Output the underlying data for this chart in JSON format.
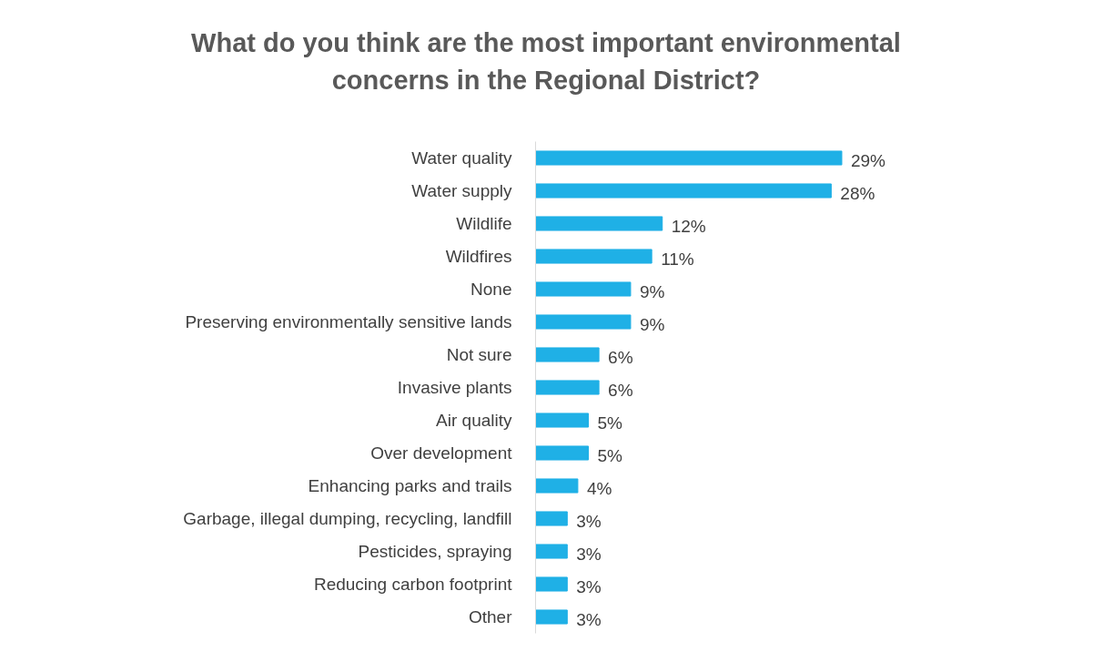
{
  "chart_data": {
    "type": "bar",
    "orientation": "horizontal",
    "title": "What do you think are the most important environmental\nconcerns in the Regional District?",
    "categories": [
      "Water quality",
      "Water supply",
      "Wildlife",
      "Wildfires",
      "None",
      "Preserving environmentally sensitive lands",
      "Not sure",
      "Invasive plants",
      "Air quality",
      "Over development",
      "Enhancing parks and trails",
      "Garbage, illegal dumping, recycling, landfill",
      "Pesticides, spraying",
      "Reducing carbon footprint",
      "Other"
    ],
    "values": [
      29,
      28,
      12,
      11,
      9,
      9,
      6,
      6,
      5,
      5,
      4,
      3,
      3,
      3,
      3
    ],
    "value_labels": [
      "29%",
      "28%",
      "12%",
      "11%",
      "9%",
      "9%",
      "6%",
      "6%",
      "5%",
      "5%",
      "4%",
      "3%",
      "3%",
      "3%",
      "3%"
    ],
    "color": "#1fb0e6",
    "grid": false
  }
}
